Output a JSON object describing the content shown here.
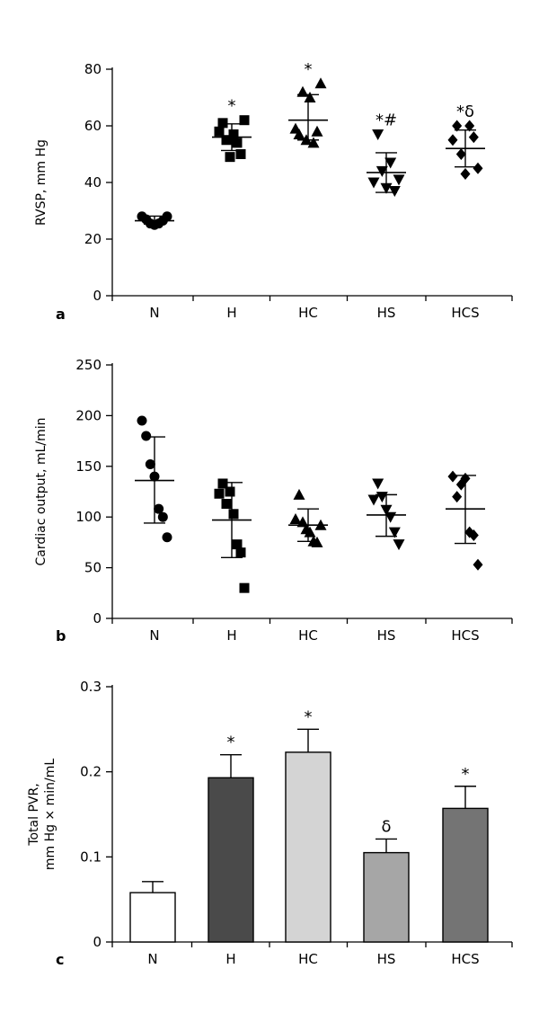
{
  "chart_data": [
    {
      "type": "scatter",
      "panel": "a",
      "ylabel": "RVSP, mm Hg",
      "ylim": [
        0,
        80
      ],
      "yticks": [
        0,
        20,
        40,
        60,
        80
      ],
      "categories": [
        "N",
        "H",
        "HC",
        "HS",
        "HCS"
      ],
      "marker_shapes": [
        "circle",
        "square",
        "triangle-up",
        "triangle-down",
        "diamond"
      ],
      "groups": [
        {
          "category": "N",
          "points": [
            28,
            27,
            25.5,
            25,
            25.5,
            26.5,
            28
          ],
          "mean": 26.5,
          "sd": [
            25.3,
            28.1
          ],
          "annotation": ""
        },
        {
          "category": "H",
          "points": [
            58,
            61,
            55,
            49,
            57,
            54,
            50,
            62
          ],
          "mean": 56,
          "sd": [
            51.3,
            60.7
          ],
          "annotation": "*"
        },
        {
          "category": "HC",
          "points": [
            59,
            57,
            72,
            55,
            70,
            54,
            58,
            75
          ],
          "mean": 62,
          "sd": [
            55,
            71
          ],
          "annotation": "*"
        },
        {
          "category": "HS",
          "points": [
            40,
            57,
            44,
            38,
            47,
            37,
            41
          ],
          "mean": 43.5,
          "sd": [
            36.5,
            50.5
          ],
          "annotation": "*#"
        },
        {
          "category": "HCS",
          "points": [
            55,
            60,
            50,
            43,
            60,
            56,
            45
          ],
          "mean": 52,
          "sd": [
            45.5,
            58.5
          ],
          "annotation": "*δ"
        }
      ]
    },
    {
      "type": "scatter",
      "panel": "b",
      "ylabel": "Cardiac output, mL/min",
      "ylim": [
        0,
        250
      ],
      "yticks": [
        0,
        50,
        100,
        150,
        200,
        250
      ],
      "categories": [
        "N",
        "H",
        "HC",
        "HS",
        "HCS"
      ],
      "marker_shapes": [
        "circle",
        "square",
        "triangle-up",
        "triangle-down",
        "diamond"
      ],
      "groups": [
        {
          "category": "N",
          "points": [
            195,
            180,
            152,
            140,
            108,
            100,
            80
          ],
          "mean": 136,
          "sd": [
            94,
            179
          ],
          "annotation": ""
        },
        {
          "category": "H",
          "points": [
            123,
            133,
            113,
            125,
            103,
            73,
            65,
            30
          ],
          "mean": 97,
          "sd": [
            60,
            134
          ],
          "annotation": ""
        },
        {
          "category": "HC",
          "points": [
            98,
            122,
            95,
            88,
            85,
            76,
            75,
            92
          ],
          "mean": 92,
          "sd": [
            76,
            108
          ],
          "annotation": ""
        },
        {
          "category": "HS",
          "points": [
            117,
            133,
            120,
            107,
            100,
            85,
            73
          ],
          "mean": 102,
          "sd": [
            81,
            122
          ],
          "annotation": ""
        },
        {
          "category": "HCS",
          "points": [
            140,
            120,
            132,
            138,
            85,
            82,
            53
          ],
          "mean": 108,
          "sd": [
            74,
            141
          ],
          "annotation": ""
        }
      ]
    },
    {
      "type": "bar",
      "panel": "c",
      "ylabel_line1": "Total PVR,",
      "ylabel_line2": "mm Hg × min/mL",
      "ylim": [
        0,
        0.3
      ],
      "yticks": [
        "0",
        "0.1",
        "0.2",
        "0.3"
      ],
      "ytick_values": [
        0,
        0.1,
        0.2,
        0.3
      ],
      "categories": [
        "N",
        "H",
        "HC",
        "HS",
        "HCS"
      ],
      "values": [
        0.058,
        0.193,
        0.223,
        0.105,
        0.157
      ],
      "errors": [
        0.013,
        0.027,
        0.027,
        0.016,
        0.026
      ],
      "colors": [
        "#ffffff",
        "#4a4a4a",
        "#d4d4d4",
        "#a6a6a6",
        "#747474"
      ],
      "annotations": [
        "",
        "*",
        "*",
        "δ",
        "*"
      ]
    }
  ]
}
